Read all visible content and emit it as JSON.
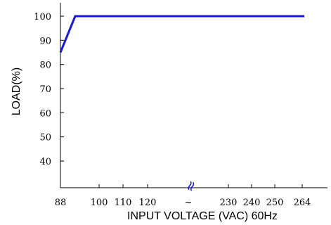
{
  "chart_data": {
    "type": "line",
    "xlabel": "INPUT VOLTAGE (VAC) 60Hz",
    "ylabel": "LOAD(%)",
    "x_tick_labels": [
      "88",
      "100",
      "110",
      "120",
      "~",
      "230",
      "240",
      "250",
      "264"
    ],
    "y_ticks": [
      40,
      50,
      60,
      70,
      80,
      90,
      100
    ],
    "ylim": [
      30,
      105
    ],
    "axis_break_symbol": "≈",
    "series": [
      {
        "color": "#1a1ad6",
        "x": [
          88,
          100,
          264
        ],
        "y": [
          85,
          100,
          100
        ]
      }
    ]
  }
}
